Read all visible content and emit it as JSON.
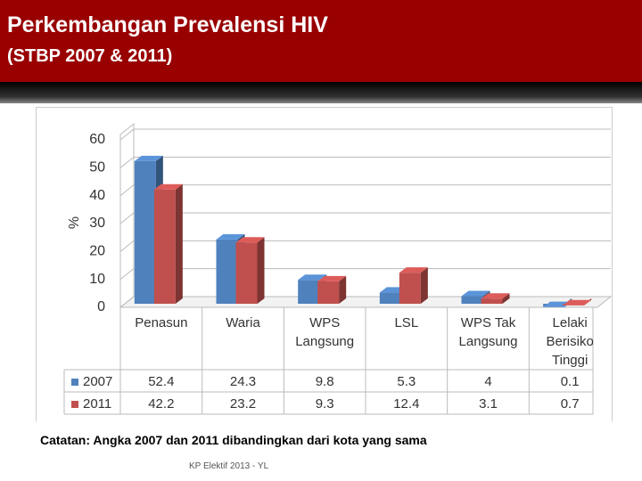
{
  "header": {
    "title": "Perkembangan Prevalensi HIV",
    "subtitle": "(STBP 2007 & 2011)"
  },
  "chart_data": {
    "type": "bar3d",
    "y_label": "%",
    "categories": [
      "Penasun",
      "Waria",
      "WPS Langsung",
      "LSL",
      "WPS Tak Langsung",
      "Lelaki Berisiko Tinggi"
    ],
    "series": [
      {
        "name": "2007",
        "color": "#4f81bd",
        "values": [
          52.4,
          24.3,
          9.8,
          5.3,
          4,
          0.1
        ]
      },
      {
        "name": "2011",
        "color": "#c0504d",
        "values": [
          42.2,
          23.2,
          9.3,
          12.4,
          3.1,
          0.7
        ]
      }
    ],
    "ylim": [
      0,
      60
    ],
    "yticks": [
      0,
      10,
      20,
      30,
      40,
      50,
      60
    ],
    "grid": true
  },
  "note": "Catatan: Angka 2007 dan 2011 dibandingkan dari kota yang sama",
  "footer": "KP Elektif 2013 - YL"
}
